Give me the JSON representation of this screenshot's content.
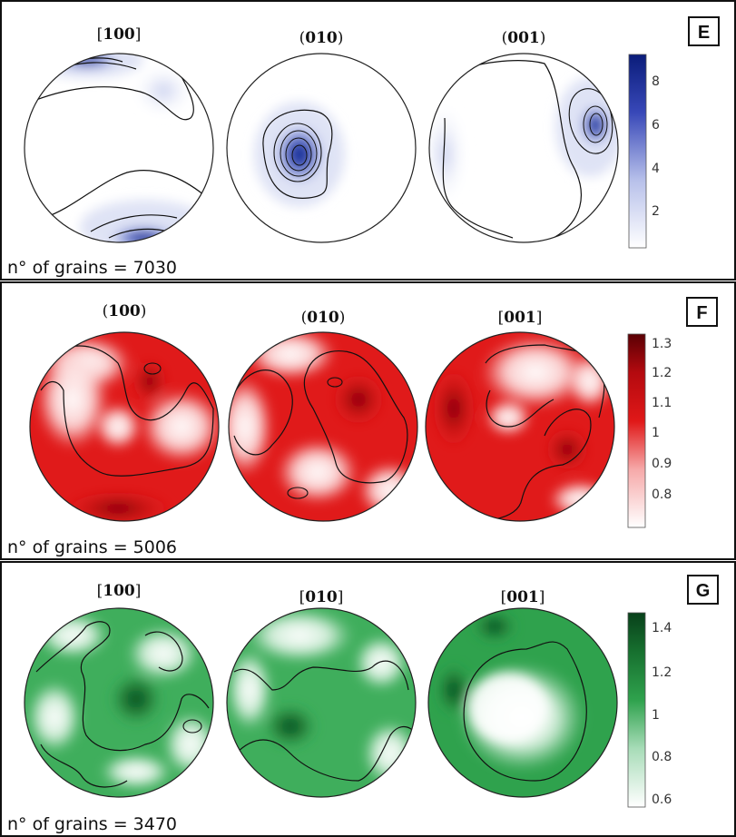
{
  "panels": [
    {
      "tag": "E",
      "theme": "blue",
      "colors": {
        "low": "#ffffff",
        "high": "#0a1c7a"
      },
      "grains_text": "n° of grains = 7030",
      "pole_figures": [
        {
          "label_open": "[",
          "label_num": "100",
          "label_close": "]"
        },
        {
          "label_open": "(",
          "label_num": "010",
          "label_close": ")"
        },
        {
          "label_open": "(",
          "label_num": "001",
          "label_close": ")"
        }
      ],
      "colorbar": {
        "ticks": [
          "8",
          "6",
          "4",
          "2"
        ]
      }
    },
    {
      "tag": "F",
      "theme": "red",
      "colors": {
        "low": "#ffffff",
        "high": "#6a0005"
      },
      "grains_text": "n° of grains = 5006",
      "pole_figures": [
        {
          "label_open": "(",
          "label_num": "100",
          "label_close": ")"
        },
        {
          "label_open": "(",
          "label_num": "010",
          "label_close": ")"
        },
        {
          "label_open": "[",
          "label_num": "001",
          "label_close": "]"
        }
      ],
      "colorbar": {
        "ticks": [
          "1.3",
          "1.2",
          "1.1",
          "1",
          "0.9",
          "0.8"
        ]
      }
    },
    {
      "tag": "G",
      "theme": "green",
      "colors": {
        "low": "#ffffff",
        "high": "#0b4a1e"
      },
      "grains_text": "n° of grains = 3470",
      "pole_figures": [
        {
          "label_open": "[",
          "label_num": "100",
          "label_close": "]"
        },
        {
          "label_open": "[",
          "label_num": "010",
          "label_close": "]"
        },
        {
          "label_open": "[",
          "label_num": "001",
          "label_close": "]"
        }
      ],
      "colorbar": {
        "ticks": [
          "1.4",
          "1.2",
          "1",
          "0.8",
          "0.6"
        ]
      }
    }
  ]
}
